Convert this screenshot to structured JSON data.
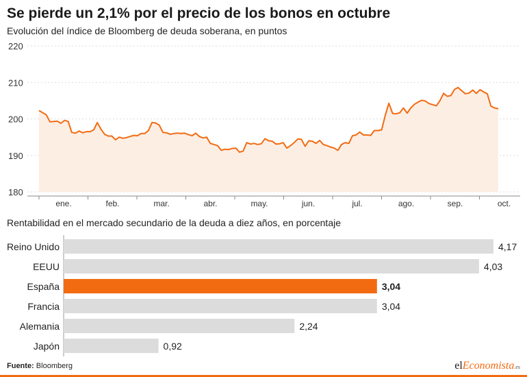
{
  "title": "Se pierde un 2,1% por el precio de los bonos en octubre",
  "subtitle": "Evolución del índice de Bloomberg de deuda soberana, en puntos",
  "bars_subtitle": "Rentabilidad en el mercado secundario de la deuda a diez años, en porcentaje",
  "source_label": "Fuente:",
  "source_value": "Bloomberg",
  "logo": {
    "part1": "el",
    "part2": "Economista",
    "part3": ".es"
  },
  "colors": {
    "line": "#f26b11",
    "area": "#fdeee4",
    "bar": "#dcdcdc",
    "bar_highlight": "#f26b11",
    "grid": "#dcdcdc"
  },
  "chart_data": [
    {
      "type": "area",
      "ylim": [
        180,
        220
      ],
      "yticks": [
        "220",
        "210",
        "200",
        "190",
        "180"
      ],
      "xlabels": [
        "ene.",
        "feb.",
        "mar.",
        "abr.",
        "may.",
        "jun.",
        "jul.",
        "ago.",
        "sep.",
        "oct."
      ],
      "series": [
        {
          "values": [
            202.3,
            201.7,
            201.1,
            199.2,
            199.3,
            199.4,
            198.8,
            199.6,
            199.3,
            196.3,
            196.1,
            196.7,
            196.2,
            196.5,
            196.5,
            197.0,
            199.0,
            197.2,
            195.8,
            195.3,
            195.3,
            194.3,
            195.0,
            194.7,
            194.9,
            195.2,
            195.5,
            195.4,
            196.0,
            196.0,
            196.8,
            199.0,
            198.9,
            198.3,
            196.3,
            196.2,
            195.8,
            196.0,
            196.1,
            196.0,
            196.1,
            195.7,
            195.4,
            196.1,
            195.2,
            194.8,
            195.0,
            193.3,
            193.0,
            192.7,
            191.4,
            191.7,
            191.6,
            191.9,
            192.0,
            190.9,
            191.2,
            193.5,
            193.1,
            193.3,
            193.0,
            193.2,
            194.6,
            194.0,
            193.9,
            193.1,
            193.2,
            193.5,
            192.0,
            192.7,
            193.5,
            194.5,
            194.4,
            192.5,
            194.0,
            193.9,
            193.3,
            194.1,
            193.0,
            192.7,
            192.3,
            192.0,
            191.4,
            193.0,
            193.5,
            193.3,
            195.4,
            195.6,
            196.4,
            195.6,
            195.6,
            195.5,
            196.8,
            196.8,
            197.0,
            201.0,
            204.3,
            201.5,
            201.4,
            201.7,
            203.0,
            201.6,
            203.0,
            204.0,
            204.6,
            205.1,
            204.9,
            204.2,
            203.9,
            203.6,
            205.0,
            207.0,
            206.2,
            206.4,
            208.1,
            208.6,
            207.7,
            206.9,
            207.1,
            207.9,
            207.0,
            208.0,
            207.4,
            206.9,
            203.5,
            203.0,
            202.8
          ]
        }
      ]
    },
    {
      "type": "bar",
      "orientation": "horizontal",
      "categories": [
        "Reino Unido",
        "EEUU",
        "España",
        "Francia",
        "Alemania",
        "Japón"
      ],
      "values": [
        4.17,
        4.03,
        3.04,
        3.04,
        2.24,
        0.92
      ],
      "value_labels": [
        "4,17",
        "4,03",
        "3,04",
        "3,04",
        "2,24",
        "0,92"
      ],
      "highlight": "España"
    }
  ]
}
